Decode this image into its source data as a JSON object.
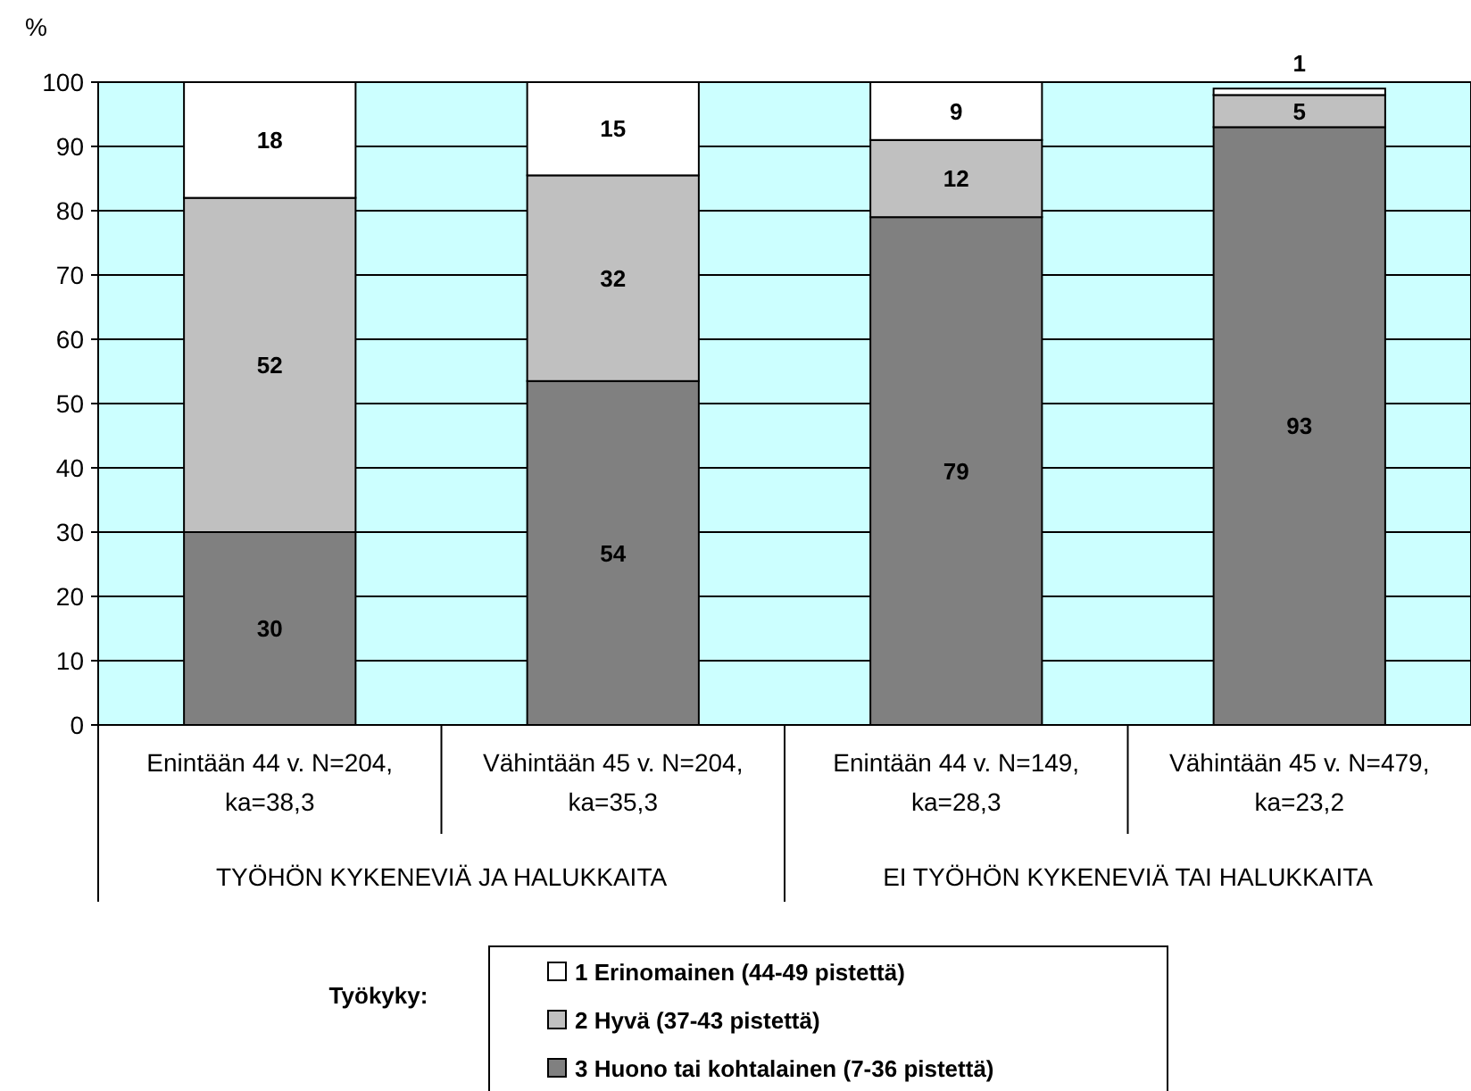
{
  "chart_data": {
    "type": "bar",
    "stacked": true,
    "ylabel": "%",
    "legend_title": "Työkyky:",
    "legend": "bottom",
    "grid": "y",
    "categories": [
      "Enintään 44 v. N=204, ka=38,3",
      "Vähintään 45 v. N=204, ka=35,3",
      "Enintään 44 v. N=149, ka=28,3",
      "Vähintään 45 v. N=479, ka=23,2"
    ],
    "annotations": [
      "TYÖHÖN KYKENEVIÄ JA HALUKKAITA",
      "EI TYÖHÖN KYKENEVIÄ TAI HALUKKAITA"
    ],
    "ylim": [
      0,
      100
    ],
    "yticks": [
      0,
      10,
      20,
      30,
      40,
      50,
      60,
      70,
      80,
      90,
      100
    ],
    "series": [
      {
        "name": "3 Huono tai kohtalainen (7-36 pistettä)",
        "color": "#808080",
        "values": [
          30,
          53.5,
          79,
          93
        ],
        "value_labels": [
          "30",
          "54",
          "79",
          "93"
        ]
      },
      {
        "name": "2 Hyvä (37-43 pistettä)",
        "color": "#c0c0c0",
        "values": [
          52,
          32,
          12,
          5
        ],
        "value_labels": [
          "52",
          "32",
          "12",
          "5"
        ]
      },
      {
        "name": "1 Erinomainen (44-49 pistettä)",
        "color": "#ffffff",
        "values": [
          18,
          14.5,
          9,
          1
        ],
        "value_labels": [
          "18",
          "15",
          "9",
          "1"
        ]
      }
    ]
  }
}
